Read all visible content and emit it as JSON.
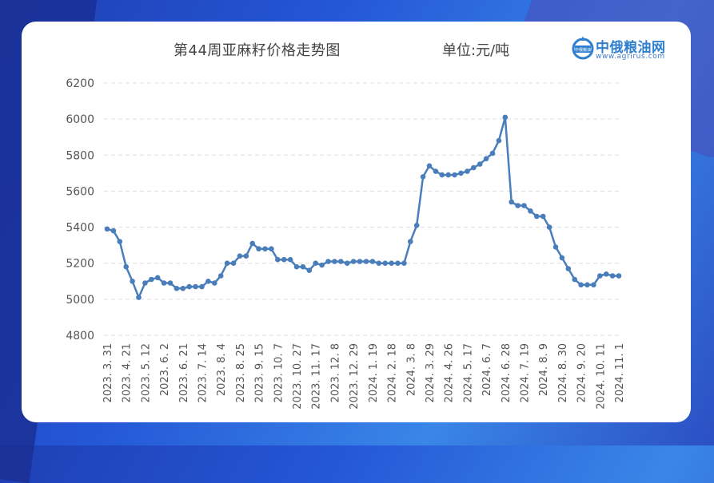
{
  "logo": {
    "name": "中俄粮油网",
    "url": "www.agrirus.com",
    "badge": "中俄粮油"
  },
  "chart_data": {
    "type": "line",
    "title": "第44周亚麻籽价格走势图",
    "unit_label": "单位:元/吨",
    "xlabel": "",
    "ylabel": "",
    "ylim": [
      4800,
      6200
    ],
    "yticks": [
      4800,
      5000,
      5200,
      5400,
      5600,
      5800,
      6000,
      6200
    ],
    "grid": true,
    "line_color": "#4a7ebb",
    "x_tick_labels": [
      "2023. 3. 31",
      "2023. 4. 21",
      "2023. 5. 12",
      "2023. 6. 2",
      "2023. 6. 21",
      "2023. 7. 14",
      "2023. 8. 4",
      "2023. 8. 25",
      "2023. 9. 15",
      "2023. 10. 7",
      "2023. 10. 27",
      "2023. 11. 17",
      "2023. 12. 8",
      "2023. 12. 29",
      "2024. 1. 19",
      "2024. 2. 18",
      "2024. 3. 8",
      "2024. 3. 29",
      "2024. 4. 26",
      "2024. 5. 17",
      "2024. 6. 7",
      "2024. 6. 28",
      "2024. 7. 19",
      "2024. 8. 9",
      "2024. 8. 30",
      "2024. 9. 20",
      "2024. 10. 11",
      "2024. 11. 1"
    ],
    "tick_every": 3,
    "series": [
      {
        "values": [
          5390,
          5380,
          5320,
          5180,
          5100,
          5010,
          5090,
          5110,
          5120,
          5090,
          5090,
          5060,
          5060,
          5070,
          5070,
          5070,
          5100,
          5090,
          5130,
          5200,
          5200,
          5240,
          5240,
          5310,
          5280,
          5280,
          5280,
          5220,
          5220,
          5220,
          5180,
          5180,
          5160,
          5200,
          5190,
          5210,
          5210,
          5210,
          5200,
          5210,
          5210,
          5210,
          5210,
          5200,
          5200,
          5200,
          5200,
          5200,
          5320,
          5410,
          5680,
          5740,
          5710,
          5690,
          5690,
          5690,
          5700,
          5710,
          5730,
          5750,
          5780,
          5810,
          5880,
          6010,
          5540,
          5520,
          5520,
          5490,
          5460,
          5460,
          5400,
          5290,
          5230,
          5170,
          5110,
          5080,
          5080,
          5080,
          5130,
          5140,
          5130,
          5130
        ]
      }
    ]
  }
}
